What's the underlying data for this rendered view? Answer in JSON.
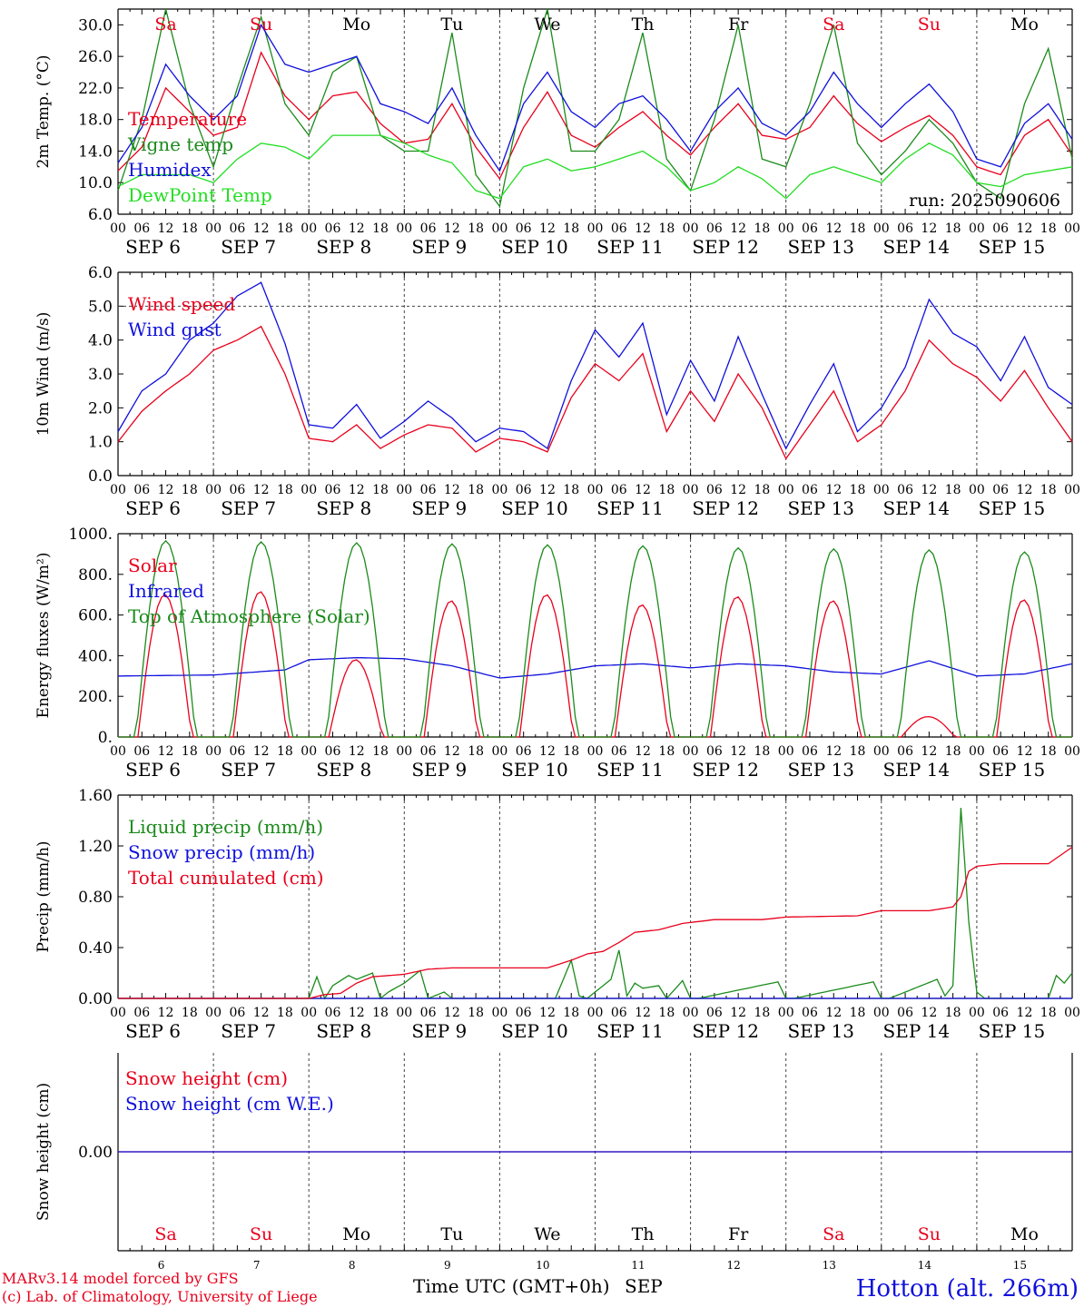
{
  "colors": {
    "red": "#e8001c",
    "green": "#1b8a1b",
    "blue": "#1010dd",
    "lightgreen": "#22dd22",
    "axis": "#000000",
    "grid": "#444444"
  },
  "days": [
    "6",
    "7",
    "8",
    "9",
    "10",
    "11",
    "12",
    "13",
    "14",
    "15"
  ],
  "weekdays": [
    {
      "label": "Sa",
      "color": "#e8001c"
    },
    {
      "label": "Su",
      "color": "#e8001c"
    },
    {
      "label": "Mo",
      "color": "#000000"
    },
    {
      "label": "Tu",
      "color": "#000000"
    },
    {
      "label": "We",
      "color": "#000000"
    },
    {
      "label": "Th",
      "color": "#000000"
    },
    {
      "label": "Fr",
      "color": "#000000"
    },
    {
      "label": "Sa",
      "color": "#e8001c"
    },
    {
      "label": "Su",
      "color": "#e8001c"
    },
    {
      "label": "Mo",
      "color": "#000000"
    }
  ],
  "hour_ticks": [
    "00",
    "06",
    "12",
    "18"
  ],
  "month": "SEP",
  "run_label": "run: 2025090606",
  "footer": {
    "credit1": "MARv3.14 model forced by GFS",
    "credit2": "(c) Lab. of Climatology, University of Liege",
    "xlabel": "Time UTC (GMT+0h)",
    "month": "SEP",
    "station": "Hotton (alt. 266m)"
  },
  "chart_data": [
    {
      "type": "line",
      "ylabel": "2m Temp. (°C)",
      "ylim": [
        6,
        32
      ],
      "yticks": [
        "6.0",
        "10.0",
        "14.0",
        "18.0",
        "22.0",
        "26.0",
        "30.0"
      ],
      "x_hours": [
        0,
        6,
        12,
        18,
        24,
        30,
        36,
        42,
        48,
        54,
        60,
        66,
        72,
        78,
        84,
        90,
        96,
        102,
        108,
        114,
        120,
        126,
        132,
        138,
        144,
        150,
        156,
        162,
        168,
        174,
        180,
        186,
        192,
        198,
        204,
        210,
        216,
        222,
        228,
        234,
        240
      ],
      "series": [
        {
          "name": "Temperature",
          "color": "#e8001c",
          "values": [
            11.5,
            14.5,
            22,
            19,
            16,
            17,
            26.5,
            21,
            18,
            21,
            21.5,
            17.5,
            15,
            15.5,
            20,
            14.5,
            10.5,
            17,
            21.5,
            16,
            14.5,
            17,
            19,
            16,
            13.5,
            17,
            20,
            16,
            15.5,
            17,
            21,
            17.5,
            15.2,
            17,
            18.5,
            16,
            12,
            11,
            16,
            18,
            13.5
          ]
        },
        {
          "name": "Vigne temp",
          "color": "#1b8a1b",
          "values": [
            9,
            18,
            32,
            20,
            12,
            22,
            31,
            20,
            16,
            24,
            26,
            16,
            14,
            14,
            29,
            11,
            7,
            22,
            32,
            14,
            14,
            18,
            29,
            13,
            9,
            18,
            30,
            13,
            12,
            20,
            30,
            15,
            11,
            14,
            18,
            15,
            10,
            8,
            20,
            27,
            13
          ]
        },
        {
          "name": "Humidex",
          "color": "#1010dd",
          "values": [
            12.5,
            17,
            25,
            21,
            18,
            21,
            30,
            25,
            24,
            25,
            26,
            20,
            19,
            17.5,
            22,
            16,
            11.5,
            20,
            24,
            19,
            17,
            20,
            21,
            18,
            14,
            19,
            22,
            17.5,
            16,
            19,
            24,
            20,
            17,
            20,
            22.5,
            19,
            13,
            12,
            17.5,
            20,
            15.5
          ]
        },
        {
          "name": "DewPoint Temp",
          "color": "#22dd22",
          "values": [
            9.5,
            11,
            11,
            11,
            10,
            13,
            15,
            14.5,
            13,
            16,
            16,
            16,
            15,
            13.5,
            12.5,
            9,
            8,
            12,
            13,
            11.5,
            12,
            13,
            14,
            12,
            9,
            10,
            12,
            10.5,
            8,
            11,
            12,
            11,
            10,
            13,
            15,
            13.5,
            10,
            9.5,
            11,
            11.5,
            12
          ]
        }
      ]
    },
    {
      "type": "line",
      "ylabel": "10m Wind (m/s)",
      "ylim": [
        0,
        6
      ],
      "yticks": [
        "0.0",
        "1.0",
        "2.0",
        "3.0",
        "4.0",
        "5.0",
        "6.0"
      ],
      "x_hours": [
        0,
        6,
        12,
        18,
        24,
        30,
        36,
        42,
        48,
        54,
        60,
        66,
        72,
        78,
        84,
        90,
        96,
        102,
        108,
        114,
        120,
        126,
        132,
        138,
        144,
        150,
        156,
        162,
        168,
        174,
        180,
        186,
        192,
        198,
        204,
        210,
        216,
        222,
        228,
        234,
        240
      ],
      "series": [
        {
          "name": "Wind speed",
          "color": "#e8001c",
          "values": [
            1.0,
            1.9,
            2.5,
            3.0,
            3.7,
            4.0,
            4.4,
            3.0,
            1.1,
            1.0,
            1.5,
            0.8,
            1.2,
            1.5,
            1.4,
            0.7,
            1.1,
            1.0,
            0.7,
            2.3,
            3.3,
            2.8,
            3.6,
            1.3,
            2.5,
            1.6,
            3.0,
            2.0,
            0.5,
            1.5,
            2.5,
            1.0,
            1.5,
            2.5,
            4.0,
            3.3,
            2.9,
            2.2,
            3.1,
            2.0,
            1.0
          ]
        },
        {
          "name": "Wind gust",
          "color": "#1010dd",
          "values": [
            1.3,
            2.5,
            3.0,
            4.0,
            4.5,
            5.3,
            5.7,
            3.9,
            1.5,
            1.4,
            2.1,
            1.1,
            1.6,
            2.2,
            1.7,
            1.0,
            1.4,
            1.3,
            0.8,
            2.8,
            4.3,
            3.5,
            4.5,
            1.8,
            3.4,
            2.2,
            4.1,
            2.4,
            0.8,
            2.1,
            3.3,
            1.3,
            2.0,
            3.2,
            5.2,
            4.2,
            3.8,
            2.8,
            4.1,
            2.6,
            2.1
          ]
        }
      ],
      "ref_line": 5.0
    },
    {
      "type": "line",
      "ylabel": "Energy fluxes (W/m²)",
      "ylim": [
        0,
        1000
      ],
      "yticks": [
        "0.",
        "200.",
        "400.",
        "600.",
        "800.",
        "1000."
      ],
      "series": [
        {
          "name": "Solar",
          "color": "#e8001c",
          "daily_peak": [
            700,
            715,
            380,
            670,
            700,
            650,
            690,
            670,
            100,
            675
          ]
        },
        {
          "name": "Infrared",
          "color": "#1010dd",
          "x_hours": [
            0,
            24,
            42,
            48,
            60,
            72,
            84,
            96,
            108,
            120,
            132,
            144,
            156,
            168,
            180,
            192,
            204,
            216,
            228,
            240
          ],
          "values": [
            300,
            305,
            330,
            380,
            390,
            385,
            350,
            290,
            310,
            350,
            360,
            340,
            360,
            350,
            320,
            310,
            375,
            300,
            310,
            360
          ]
        },
        {
          "name": "Top of Atmosphere (Solar)",
          "color": "#1b8a1b",
          "daily_peak": [
            965,
            960,
            955,
            950,
            945,
            940,
            930,
            925,
            920,
            910
          ]
        }
      ]
    },
    {
      "type": "line",
      "ylabel": "Precip (mm/h)",
      "ylim": [
        0,
        1.6
      ],
      "yticks": [
        "0.00",
        "0.40",
        "0.80",
        "1.20",
        "1.60"
      ],
      "series": [
        {
          "name": "Liquid precip (mm/h)",
          "color": "#1b8a1b",
          "x_hours": [
            0,
            48,
            50,
            52,
            54,
            58,
            60,
            64,
            66,
            68,
            72,
            76,
            78,
            82,
            84,
            88,
            110,
            114,
            116,
            118,
            124,
            126,
            128,
            130,
            132,
            136,
            138,
            142,
            144,
            146,
            166,
            168,
            170,
            190,
            192,
            194,
            206,
            208,
            210,
            212,
            214,
            216,
            218,
            234,
            236,
            238,
            240
          ],
          "values": [
            0,
            0,
            0.17,
            0,
            0.1,
            0.18,
            0.15,
            0.2,
            0,
            0.05,
            0.12,
            0.22,
            0,
            0.05,
            0,
            0,
            0,
            0.3,
            0.02,
            0,
            0.15,
            0.38,
            0.02,
            0.12,
            0.08,
            0.1,
            0,
            0.14,
            0,
            0,
            0.13,
            0,
            0,
            0.13,
            0,
            0,
            0.15,
            0.02,
            0.1,
            1.5,
            0.6,
            0.05,
            0,
            0,
            0.18,
            0.12,
            0.2
          ]
        },
        {
          "name": "Snow precip (mm/h)",
          "color": "#1010dd",
          "x_hours": [
            0,
            240
          ],
          "values": [
            0,
            0
          ]
        },
        {
          "name": "Total cumulated (cm)",
          "color": "#e8001c",
          "x_hours": [
            0,
            48,
            52,
            56,
            60,
            64,
            68,
            72,
            78,
            84,
            96,
            108,
            114,
            118,
            122,
            126,
            130,
            136,
            142,
            150,
            156,
            162,
            168,
            186,
            192,
            204,
            210,
            212,
            214,
            216,
            222,
            228,
            234,
            240
          ],
          "values": [
            0,
            0,
            0.03,
            0.04,
            0.12,
            0.17,
            0.18,
            0.19,
            0.23,
            0.24,
            0.24,
            0.24,
            0.3,
            0.35,
            0.37,
            0.44,
            0.52,
            0.54,
            0.59,
            0.62,
            0.62,
            0.62,
            0.64,
            0.65,
            0.69,
            0.69,
            0.72,
            0.8,
            1.0,
            1.04,
            1.06,
            1.06,
            1.06,
            1.19
          ]
        }
      ]
    },
    {
      "type": "line",
      "ylabel": "Snow height (cm)",
      "ylim": [
        -1,
        1
      ],
      "yticks": [
        "0.00"
      ],
      "series": [
        {
          "name": "Snow height (cm)",
          "color": "#e8001c",
          "x_hours": [
            0,
            240
          ],
          "values": [
            0,
            0
          ]
        },
        {
          "name": "Snow height (cm W.E.)",
          "color": "#1010dd",
          "x_hours": [
            0,
            240
          ],
          "values": [
            0,
            0
          ]
        }
      ]
    }
  ]
}
